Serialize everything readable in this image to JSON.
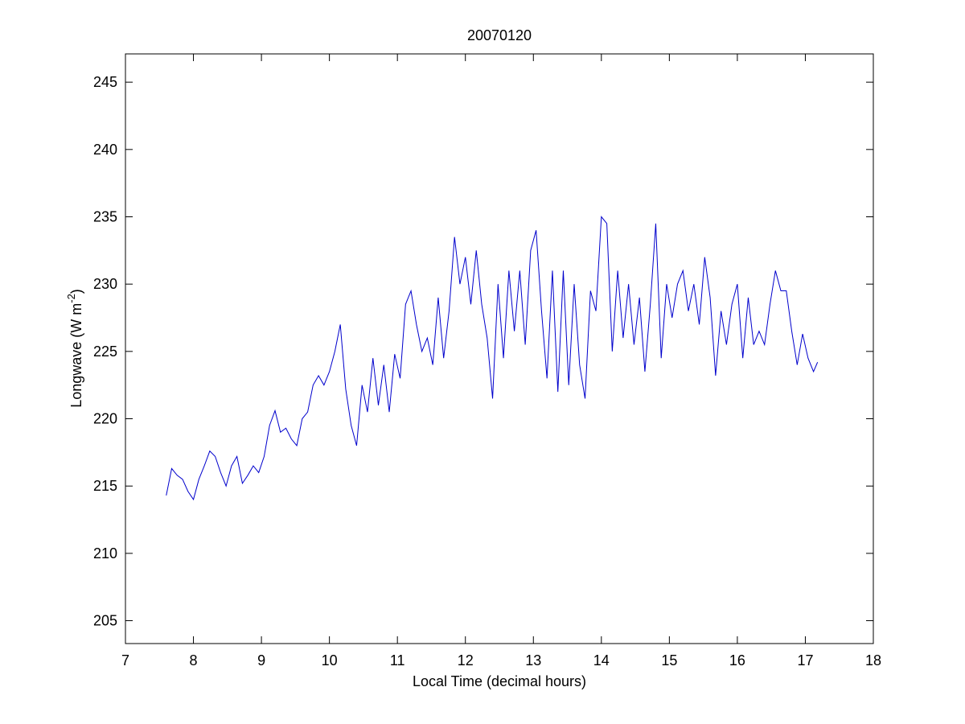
{
  "chart_data": {
    "type": "line",
    "title": "20070120",
    "xlabel": "Local Time (decimal hours)",
    "ylabel_parts": [
      "Longwave (W m",
      "-2",
      ")"
    ],
    "xlim": [
      7,
      18
    ],
    "xticks": [
      7,
      8,
      9,
      10,
      11,
      12,
      13,
      14,
      15,
      16,
      17,
      18
    ],
    "ylim": [
      203.3,
      247.1
    ],
    "yticks": [
      205,
      210,
      215,
      220,
      225,
      230,
      235,
      240,
      245
    ],
    "grid": false,
    "x": [
      7.6,
      7.68,
      7.76,
      7.84,
      7.92,
      8.0,
      8.08,
      8.16,
      8.24,
      8.32,
      8.4,
      8.48,
      8.56,
      8.64,
      8.72,
      8.8,
      8.88,
      8.96,
      9.04,
      9.12,
      9.2,
      9.28,
      9.36,
      9.44,
      9.52,
      9.6,
      9.68,
      9.76,
      9.84,
      9.92,
      10.0,
      10.08,
      10.16,
      10.24,
      10.32,
      10.4,
      10.48,
      10.56,
      10.64,
      10.72,
      10.8,
      10.88,
      10.96,
      11.04,
      11.12,
      11.2,
      11.28,
      11.36,
      11.44,
      11.52,
      11.6,
      11.68,
      11.76,
      11.84,
      11.92,
      12.0,
      12.08,
      12.16,
      12.24,
      12.32,
      12.4,
      12.48,
      12.56,
      12.64,
      12.72,
      12.8,
      12.88,
      12.96,
      13.04,
      13.12,
      13.2,
      13.28,
      13.36,
      13.44,
      13.52,
      13.6,
      13.68,
      13.76,
      13.84,
      13.92,
      14.0,
      14.08,
      14.16,
      14.24,
      14.32,
      14.4,
      14.48,
      14.56,
      14.64,
      14.72,
      14.8,
      14.88,
      14.96,
      15.04,
      15.12,
      15.2,
      15.28,
      15.36,
      15.44,
      15.52,
      15.6,
      15.68,
      15.76,
      15.84,
      15.92,
      16.0,
      16.08,
      16.16,
      16.24,
      16.32,
      16.4,
      16.48,
      16.56,
      16.64,
      16.72,
      16.8,
      16.88,
      16.96,
      17.04,
      17.12,
      17.18
    ],
    "series": [
      {
        "color": "#0000cc",
        "values": [
          214.3,
          216.3,
          215.8,
          215.5,
          214.6,
          214.0,
          215.5,
          216.5,
          217.6,
          217.2,
          216.0,
          215.0,
          216.5,
          217.2,
          215.2,
          215.8,
          216.5,
          216.0,
          217.2,
          219.5,
          220.6,
          219.0,
          219.3,
          218.5,
          218.0,
          220.0,
          220.5,
          222.5,
          223.2,
          222.5,
          223.5,
          225.0,
          227.0,
          222.2,
          219.5,
          218.0,
          222.5,
          220.5,
          224.5,
          221.0,
          224.0,
          220.5,
          224.8,
          223.0,
          228.5,
          229.5,
          227.0,
          225.0,
          226.0,
          224.0,
          229.0,
          224.5,
          228.0,
          233.5,
          230.0,
          232.0,
          228.5,
          232.5,
          228.5,
          226.0,
          221.5,
          230.0,
          224.5,
          231.0,
          226.5,
          231.0,
          225.5,
          232.5,
          234.0,
          228.0,
          223.0,
          231.0,
          222.0,
          231.0,
          222.5,
          230.0,
          224.0,
          221.5,
          229.5,
          228.0,
          235.0,
          234.5,
          225.0,
          231.0,
          226.0,
          230.0,
          225.5,
          229.0,
          223.5,
          228.5,
          234.5,
          224.5,
          230.0,
          227.5,
          230.0,
          231.0,
          228.0,
          230.0,
          227.0,
          232.0,
          229.0,
          223.2,
          228.0,
          225.5,
          228.5,
          230.0,
          224.5,
          229.0,
          225.5,
          226.5,
          225.5,
          228.5,
          231.0,
          229.5,
          229.5,
          226.5,
          224.0,
          226.3,
          224.5,
          223.5,
          224.2
        ]
      }
    ]
  }
}
